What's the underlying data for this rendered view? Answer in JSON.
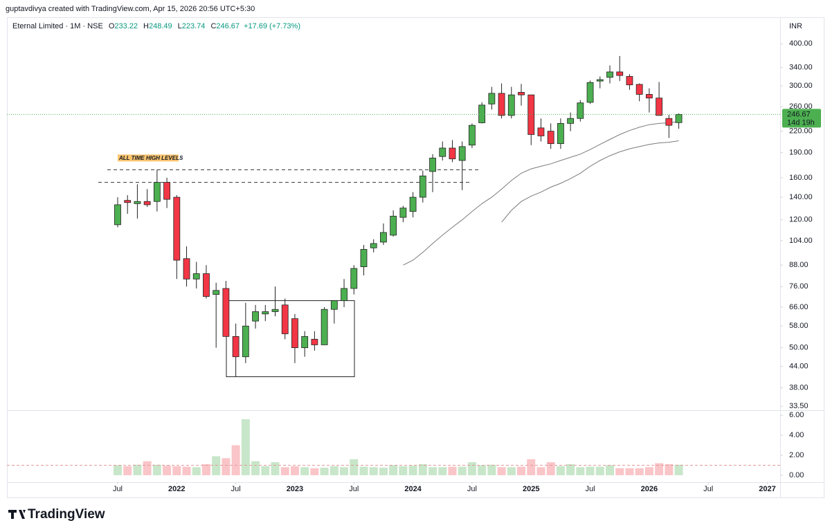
{
  "chart_data": {
    "type": "candlestick",
    "attribution": "guptavdivya created with TradingView.com, Apr 15, 2026 20:56 UTC+5:30",
    "symbol": "Eternal Limited · 1M · NSE",
    "ohlc_labels": [
      "O",
      "H",
      "L",
      "C"
    ],
    "change": "+17.69 (+7.73%)",
    "currency": "INR",
    "countdown": "14d 19h",
    "brand": "TradingView",
    "log_scale": true,
    "up_color": "#4caf50",
    "down_color": "#f23645",
    "open": [
      116,
      137,
      134,
      136,
      136,
      155,
      140,
      92,
      80,
      83,
      72,
      75,
      54,
      47,
      60,
      63,
      64,
      67,
      61,
      50,
      53,
      51,
      65,
      69,
      75,
      87,
      99,
      103,
      108,
      122,
      127,
      140,
      167,
      185,
      196,
      180,
      200,
      233,
      265,
      285,
      245,
      287,
      282,
      225,
      220,
      202,
      232,
      240,
      268,
      310,
      318,
      330,
      320,
      303,
      283,
      276,
      240,
      233.22
    ],
    "high": [
      140,
      142,
      153,
      148,
      169,
      160,
      142,
      100,
      90,
      88,
      78,
      79,
      59,
      68,
      67,
      67,
      76,
      70,
      63,
      56,
      56,
      66,
      69,
      80,
      88,
      101,
      105,
      117,
      128,
      132,
      145,
      168,
      188,
      205,
      207,
      205,
      232,
      268,
      298,
      305,
      298,
      304,
      282,
      240,
      232,
      240,
      250,
      272,
      311,
      320,
      345,
      368,
      325,
      305,
      295,
      308,
      246,
      248.49
    ],
    "low": [
      114,
      125,
      121,
      131,
      127,
      130,
      80,
      76,
      75,
      70,
      50,
      54,
      41,
      45,
      57,
      60,
      62,
      53,
      45,
      47,
      49,
      51,
      59,
      66,
      72,
      82,
      96,
      101,
      107,
      118,
      122,
      135,
      145,
      180,
      178,
      147,
      196,
      232,
      255,
      240,
      240,
      262,
      200,
      205,
      195,
      195,
      220,
      235,
      265,
      295,
      305,
      310,
      292,
      270,
      250,
      245,
      210,
      223.74
    ],
    "close": [
      133,
      135,
      136,
      133,
      155,
      138,
      91,
      80,
      83,
      71,
      74,
      54,
      47,
      58,
      64,
      64,
      65,
      55,
      50,
      54,
      51,
      65,
      69,
      75,
      86,
      98,
      102,
      110,
      123,
      130,
      140,
      162,
      183,
      196,
      182,
      198,
      229,
      263,
      285,
      245,
      282,
      282,
      215,
      213,
      202,
      232,
      240,
      267,
      307,
      313,
      330,
      322,
      302,
      283,
      276,
      245,
      228.98,
      246.67
    ],
    "volume": [
      1.0,
      0.9,
      1.05,
      1.4,
      1.05,
      0.95,
      0.9,
      0.85,
      0.8,
      1.1,
      1.9,
      1.7,
      3.0,
      5.6,
      1.4,
      0.9,
      1.3,
      0.8,
      0.9,
      0.8,
      0.7,
      0.75,
      0.9,
      0.8,
      1.6,
      0.85,
      0.8,
      0.75,
      1.0,
      0.9,
      0.95,
      1.1,
      0.8,
      0.8,
      0.85,
      0.85,
      1.3,
      1.0,
      1.05,
      0.8,
      0.8,
      0.85,
      1.6,
      0.8,
      1.3,
      0.9,
      1.1,
      0.8,
      0.85,
      0.85,
      1.0,
      0.7,
      0.7,
      0.7,
      0.8,
      1.2,
      1.1,
      1.05
    ],
    "volume_ma": 1.0,
    "ma_lines": [
      {
        "color": "#7a7a7a",
        "values": [
          null,
          null,
          null,
          null,
          null,
          null,
          null,
          null,
          null,
          null,
          null,
          null,
          null,
          null,
          null,
          null,
          null,
          null,
          null,
          null,
          null,
          null,
          null,
          null,
          null,
          null,
          null,
          null,
          null,
          88,
          91,
          96,
          102,
          108,
          114,
          120,
          127,
          134,
          140,
          148,
          157,
          165,
          170,
          173,
          176,
          180,
          184,
          188,
          194,
          201,
          208,
          215,
          221,
          226,
          230,
          232,
          233,
          235
        ]
      },
      {
        "color": "#7a7a7a",
        "values": [
          null,
          null,
          null,
          null,
          null,
          null,
          null,
          null,
          null,
          null,
          null,
          null,
          null,
          null,
          null,
          null,
          null,
          null,
          null,
          null,
          null,
          null,
          null,
          null,
          null,
          null,
          null,
          null,
          null,
          null,
          null,
          null,
          null,
          null,
          null,
          null,
          null,
          null,
          null,
          118,
          128,
          136,
          141,
          145,
          150,
          154,
          159,
          165,
          173,
          180,
          186,
          191,
          195,
          198,
          201,
          203,
          204,
          206
        ]
      }
    ],
    "drawings": {
      "levels": [
        169,
        155
      ],
      "level_note": "ALL TIME HIGH LEVELS",
      "box": [
        69,
        41
      ]
    },
    "xlim": [
      -11.25,
      67.3
    ],
    "xticks": [
      {
        "value": 0,
        "label": "Jul"
      },
      {
        "value": 6,
        "label": "2022"
      },
      {
        "value": 12,
        "label": "Jul"
      },
      {
        "value": 18,
        "label": "2023"
      },
      {
        "value": 24,
        "label": "Jul"
      },
      {
        "value": 30,
        "label": "2024"
      },
      {
        "value": 36,
        "label": "Jul"
      },
      {
        "value": 42,
        "label": "2025"
      },
      {
        "value": 48,
        "label": "Jul"
      },
      {
        "value": 54,
        "label": "2026"
      },
      {
        "value": 60,
        "label": "Jul"
      },
      {
        "value": 66,
        "label": "2027"
      }
    ],
    "ylim": [
      32.6,
      426
    ],
    "yticks": [
      {
        "value": 400,
        "label": "400.00"
      },
      {
        "value": 340,
        "label": "340.00"
      },
      {
        "value": 300,
        "label": "300.00"
      },
      {
        "value": 260,
        "label": "260.00"
      },
      {
        "value": 220,
        "label": "220.00"
      },
      {
        "value": 190,
        "label": "190.00"
      },
      {
        "value": 160,
        "label": "160.00"
      },
      {
        "value": 140,
        "label": "140.00"
      },
      {
        "value": 120,
        "label": "120.00"
      },
      {
        "value": 104,
        "label": "104.00"
      },
      {
        "value": 88,
        "label": "88.00"
      },
      {
        "value": 76,
        "label": "76.00"
      },
      {
        "value": 66,
        "label": "66.00"
      },
      {
        "value": 58,
        "label": "58.00"
      },
      {
        "value": 50,
        "label": "50.00"
      },
      {
        "value": 44,
        "label": "44.00"
      },
      {
        "value": 38,
        "label": "38.00"
      },
      {
        "value": 33.5,
        "label": "33.50"
      }
    ],
    "vlim": [
      -0.7,
      6.5
    ],
    "vticks": [
      {
        "value": 0,
        "label": "0.00"
      },
      {
        "value": 2,
        "label": "2.00"
      },
      {
        "value": 4,
        "label": "4.00"
      },
      {
        "value": 6,
        "label": "6.00"
      }
    ]
  }
}
